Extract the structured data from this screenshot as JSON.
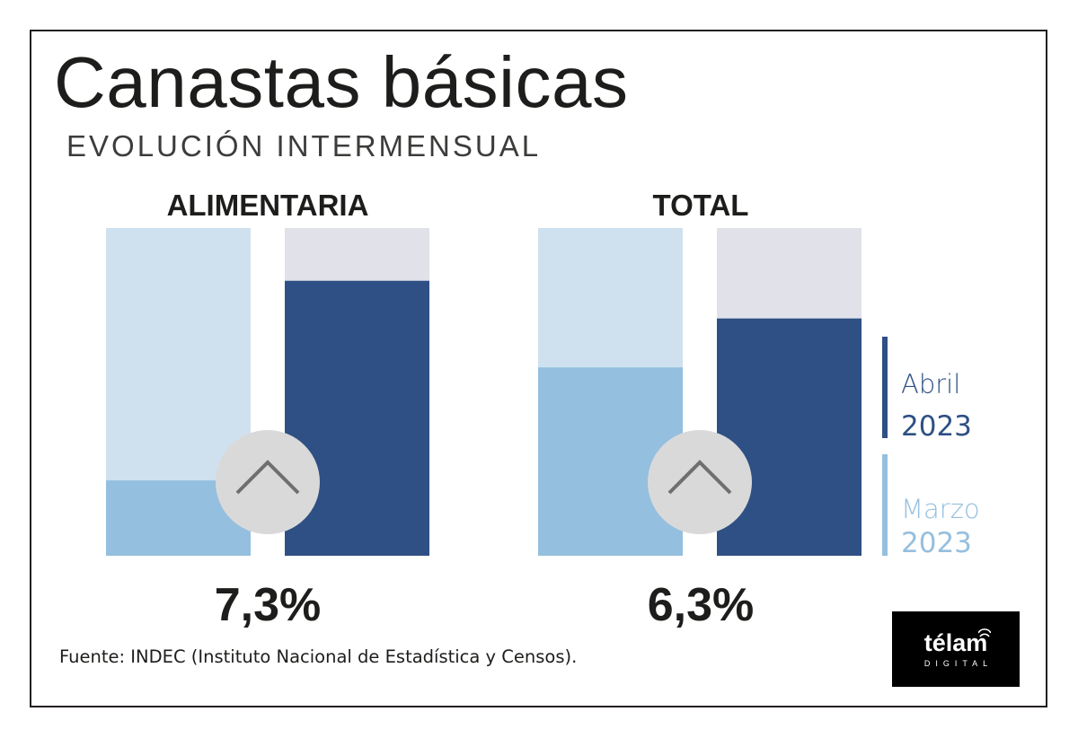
{
  "header": {
    "title": "Canastas básicas",
    "subtitle": "EVOLUCIÓN INTERMENSUAL"
  },
  "chart_data": {
    "type": "bar",
    "title": "Canastas básicas",
    "subtitle": "EVOLUCIÓN INTERMENSUAL",
    "ylim": [
      0,
      8.7
    ],
    "groups": [
      {
        "label": "ALIMENTARIA",
        "value_label": "7,3%"
      },
      {
        "label": "TOTAL",
        "value_label": "6,3%"
      }
    ],
    "series": [
      {
        "name": "Marzo 2023",
        "values": [
          2.0,
          5.0
        ]
      },
      {
        "name": "Abril 2023",
        "values": [
          7.3,
          6.3
        ]
      }
    ],
    "legend_position": "right"
  },
  "legend": {
    "abril": {
      "name": "Abril",
      "year": "2023"
    },
    "marzo": {
      "name": "Marzo",
      "year": "2023"
    }
  },
  "source": "Fuente: INDEC (Instituto Nacional de Estadística y Censos).",
  "logo": {
    "word": "télam",
    "sub": "DIGITAL"
  },
  "colors": {
    "abril": "#2e5084",
    "abril_bg": "#e1e1ea",
    "marzo": "#95bfde",
    "marzo_bg": "#cfe1ef",
    "circle": "#d9d9d9",
    "chevron": "#6f6f6f",
    "text": "#1d1d1b"
  },
  "icons": {
    "up_indicator": "chevron-up-icon",
    "logo_signal": "signal-waves-icon"
  }
}
